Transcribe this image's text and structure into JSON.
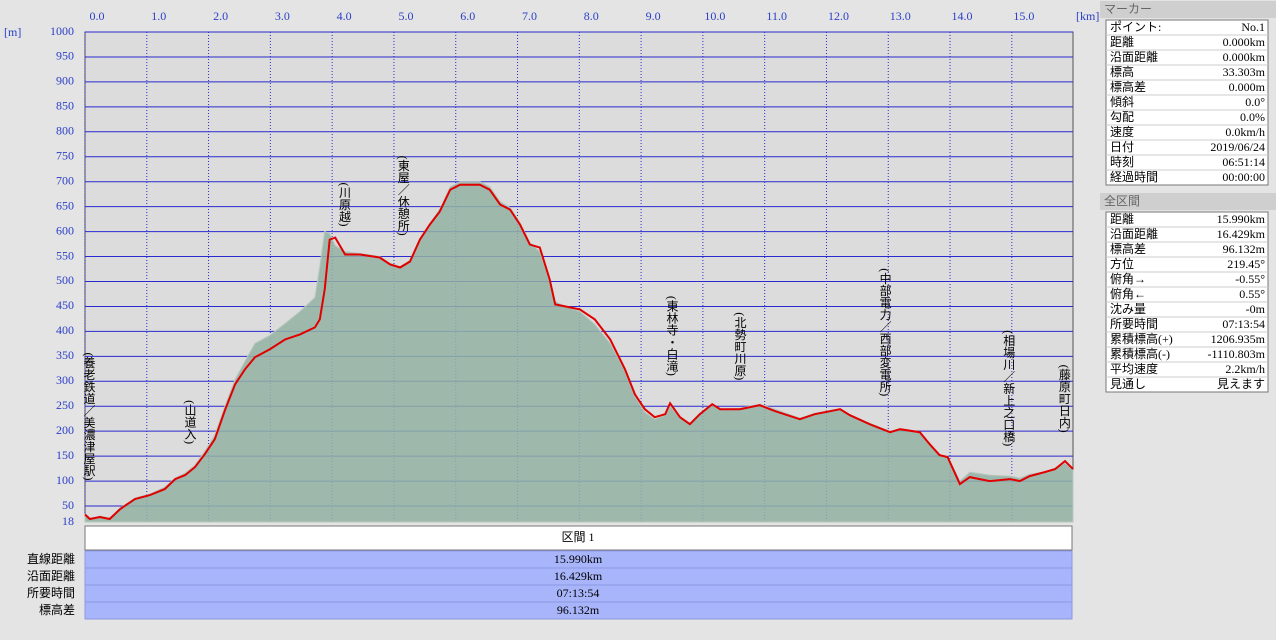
{
  "chart_data": {
    "type": "line",
    "x_unit": "[km]",
    "y_unit": "[m]",
    "xlim": [
      0,
      15.99
    ],
    "ylim": [
      18,
      1000
    ],
    "xticks": [
      {
        "value": 0,
        "label": "0.0"
      },
      {
        "value": 1,
        "label": "1.0"
      },
      {
        "value": 2,
        "label": "2.0"
      },
      {
        "value": 3,
        "label": "3.0"
      },
      {
        "value": 4,
        "label": "4.0"
      },
      {
        "value": 5,
        "label": "5.0"
      },
      {
        "value": 6,
        "label": "6.0"
      },
      {
        "value": 7,
        "label": "7.0"
      },
      {
        "value": 8,
        "label": "8.0"
      },
      {
        "value": 9,
        "label": "9.0"
      },
      {
        "value": 10,
        "label": "10.0"
      },
      {
        "value": 11,
        "label": "11.0"
      },
      {
        "value": 12,
        "label": "12.0"
      },
      {
        "value": 13,
        "label": "13.0"
      },
      {
        "value": 14,
        "label": "14.0"
      },
      {
        "value": 15,
        "label": "15.0"
      }
    ],
    "yticks": [
      18,
      50,
      100,
      150,
      200,
      250,
      300,
      350,
      400,
      450,
      500,
      550,
      600,
      650,
      700,
      750,
      800,
      850,
      900,
      950,
      1000
    ],
    "grid": true,
    "x": [
      0.0,
      0.08,
      0.24,
      0.4,
      0.57,
      0.81,
      1.05,
      1.29,
      1.46,
      1.62,
      1.78,
      1.94,
      2.1,
      2.27,
      2.43,
      2.59,
      2.75,
      2.99,
      3.24,
      3.48,
      3.72,
      3.8,
      3.88,
      3.96,
      4.05,
      4.21,
      4.45,
      4.77,
      4.94,
      5.1,
      5.26,
      5.42,
      5.58,
      5.74,
      5.91,
      6.07,
      6.39,
      6.55,
      6.72,
      6.88,
      7.04,
      7.2,
      7.36,
      7.52,
      7.61,
      7.77,
      8.01,
      8.25,
      8.5,
      8.74,
      8.9,
      9.06,
      9.22,
      9.39,
      9.47,
      9.63,
      9.79,
      9.95,
      10.15,
      10.28,
      10.6,
      10.92,
      11.17,
      11.57,
      11.81,
      12.06,
      12.22,
      12.38,
      12.7,
      13.03,
      13.19,
      13.51,
      13.67,
      13.83,
      13.96,
      14.16,
      14.32,
      14.64,
      14.97,
      15.13,
      15.29,
      15.53,
      15.7,
      15.86,
      15.99
    ],
    "series": [
      {
        "kind": "area",
        "color": "#93b3a3",
        "values": [
          33,
          24,
          30,
          26,
          46,
          66,
          74,
          88,
          106,
          116,
          132,
          160,
          192,
          252,
          304,
          340,
          376,
          392,
          416,
          440,
          468,
          530,
          600,
          596,
          572,
          560,
          556,
          550,
          536,
          530,
          542,
          586,
          616,
          644,
          690,
          700,
          700,
          690,
          660,
          648,
          618,
          578,
          560,
          500,
          460,
          450,
          440,
          414,
          376,
          320,
          270,
          238,
          224,
          232,
          250,
          228,
          216,
          236,
          252,
          244,
          246,
          254,
          244,
          226,
          236,
          242,
          244,
          232,
          216,
          200,
          204,
          198,
          176,
          152,
          150,
          100,
          118,
          112,
          110,
          106,
          114,
          118,
          126,
          136,
          122
        ]
      },
      {
        "kind": "line",
        "color": "#e00000",
        "values": [
          33,
          24,
          28,
          24,
          44,
          64,
          72,
          84,
          104,
          112,
          128,
          154,
          184,
          244,
          294,
          324,
          348,
          364,
          384,
          394,
          408,
          424,
          484,
          584,
          588,
          554,
          554,
          548,
          534,
          528,
          540,
          584,
          614,
          640,
          684,
          694,
          694,
          684,
          654,
          644,
          614,
          574,
          568,
          504,
          454,
          450,
          444,
          424,
          384,
          324,
          274,
          244,
          228,
          234,
          256,
          228,
          214,
          234,
          254,
          244,
          244,
          252,
          240,
          224,
          234,
          240,
          244,
          232,
          214,
          198,
          204,
          198,
          174,
          152,
          148,
          94,
          108,
          100,
          104,
          100,
          110,
          118,
          124,
          140,
          124
        ]
      }
    ],
    "annotations": [
      {
        "text": "(養老鉄道／美濃津屋駅)",
        "x": 0.0
      },
      {
        "text": "(山道入)",
        "x": 1.7
      },
      {
        "text": "(川原越)",
        "x": 4.2
      },
      {
        "text": "(東屋／休憩所)",
        "x": 5.15
      },
      {
        "text": "(東林寺・白滝)",
        "x": 9.5
      },
      {
        "text": "(北勢町川原)",
        "x": 10.6
      },
      {
        "text": "(中部電力／西部変電所)",
        "x": 12.95
      },
      {
        "text": "(相場川／新上之口橋)",
        "x": 14.95
      },
      {
        "text": "(藤原町日内)",
        "x": 15.85
      }
    ]
  },
  "marker": {
    "title": "マーカー",
    "rows": [
      [
        "ポイント:",
        "No.1"
      ],
      [
        "距離",
        "0.000km"
      ],
      [
        "沿面距離",
        "0.000km"
      ],
      [
        "標高",
        "33.303m"
      ],
      [
        "標高差",
        "0.000m"
      ],
      [
        "傾斜",
        "0.0°"
      ],
      [
        "勾配",
        "0.0%"
      ],
      [
        "速度",
        "0.0km/h"
      ],
      [
        "日付",
        "2019/06/24"
      ],
      [
        "時刻",
        "06:51:14"
      ],
      [
        "経過時間",
        "00:00:00"
      ]
    ]
  },
  "total": {
    "title": "全区間",
    "rows": [
      [
        "距離",
        "15.990km"
      ],
      [
        "沿面距離",
        "16.429km"
      ],
      [
        "標高差",
        "96.132m"
      ],
      [
        "方位",
        "219.45°"
      ],
      [
        "俯角→",
        "-0.55°"
      ],
      [
        "俯角←",
        "0.55°"
      ],
      [
        "沈み量",
        "-0m"
      ],
      [
        "所要時間",
        "07:13:54"
      ],
      [
        "累積標高(+)",
        "1206.935m"
      ],
      [
        "累積標高(-)",
        "-1110.803m"
      ],
      [
        "平均速度",
        "2.2km/h"
      ],
      [
        "見通し",
        "見えます"
      ]
    ]
  },
  "section": {
    "title": "区間 1",
    "rows": [
      [
        "直線距離",
        "15.990km"
      ],
      [
        "沿面距離",
        "16.429km"
      ],
      [
        "所要時間",
        "07:13:54"
      ],
      [
        "標高差",
        "96.132m"
      ]
    ]
  }
}
